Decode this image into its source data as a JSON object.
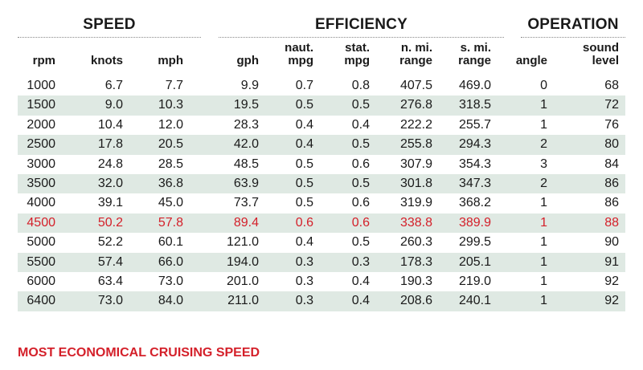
{
  "groups": {
    "speed": "SPEED",
    "efficiency": "EFFICIENCY",
    "operation": "OPERATION"
  },
  "columns": [
    {
      "line1": "",
      "line2": "rpm"
    },
    {
      "line1": "",
      "line2": "knots"
    },
    {
      "line1": "",
      "line2": "mph"
    },
    {
      "line1": "",
      "line2": "gph"
    },
    {
      "line1": "naut.",
      "line2": "mpg"
    },
    {
      "line1": "stat.",
      "line2": "mpg"
    },
    {
      "line1": "n. mi.",
      "line2": "range"
    },
    {
      "line1": "s. mi.",
      "line2": "range"
    },
    {
      "line1": "",
      "line2": "angle"
    },
    {
      "line1": "sound",
      "line2": "level"
    }
  ],
  "rows": [
    [
      "1000",
      "6.7",
      "7.7",
      "9.9",
      "0.7",
      "0.8",
      "407.5",
      "469.0",
      "0",
      "68"
    ],
    [
      "1500",
      "9.0",
      "10.3",
      "19.5",
      "0.5",
      "0.5",
      "276.8",
      "318.5",
      "1",
      "72"
    ],
    [
      "2000",
      "10.4",
      "12.0",
      "28.3",
      "0.4",
      "0.4",
      "222.2",
      "255.7",
      "1",
      "76"
    ],
    [
      "2500",
      "17.8",
      "20.5",
      "42.0",
      "0.4",
      "0.5",
      "255.8",
      "294.3",
      "2",
      "80"
    ],
    [
      "3000",
      "24.8",
      "28.5",
      "48.5",
      "0.5",
      "0.6",
      "307.9",
      "354.3",
      "3",
      "84"
    ],
    [
      "3500",
      "32.0",
      "36.8",
      "63.9",
      "0.5",
      "0.5",
      "301.8",
      "347.3",
      "2",
      "86"
    ],
    [
      "4000",
      "39.1",
      "45.0",
      "73.7",
      "0.5",
      "0.6",
      "319.9",
      "368.2",
      "1",
      "86"
    ],
    [
      "4500",
      "50.2",
      "57.8",
      "89.4",
      "0.6",
      "0.6",
      "338.8",
      "389.9",
      "1",
      "88"
    ],
    [
      "5000",
      "52.2",
      "60.1",
      "121.0",
      "0.4",
      "0.5",
      "260.3",
      "299.5",
      "1",
      "90"
    ],
    [
      "5500",
      "57.4",
      "66.0",
      "194.0",
      "0.3",
      "0.3",
      "178.3",
      "205.1",
      "1",
      "91"
    ],
    [
      "6000",
      "63.4",
      "73.0",
      "201.0",
      "0.3",
      "0.4",
      "190.3",
      "219.0",
      "1",
      "92"
    ],
    [
      "6400",
      "73.0",
      "84.0",
      "211.0",
      "0.3",
      "0.4",
      "208.6",
      "240.1",
      "1",
      "92"
    ]
  ],
  "highlight_row": 7,
  "highlight_color": "#d4202a",
  "shade_color": "#dfe9e3",
  "footnote": "MOST ECONOMICAL CRUISING SPEED"
}
